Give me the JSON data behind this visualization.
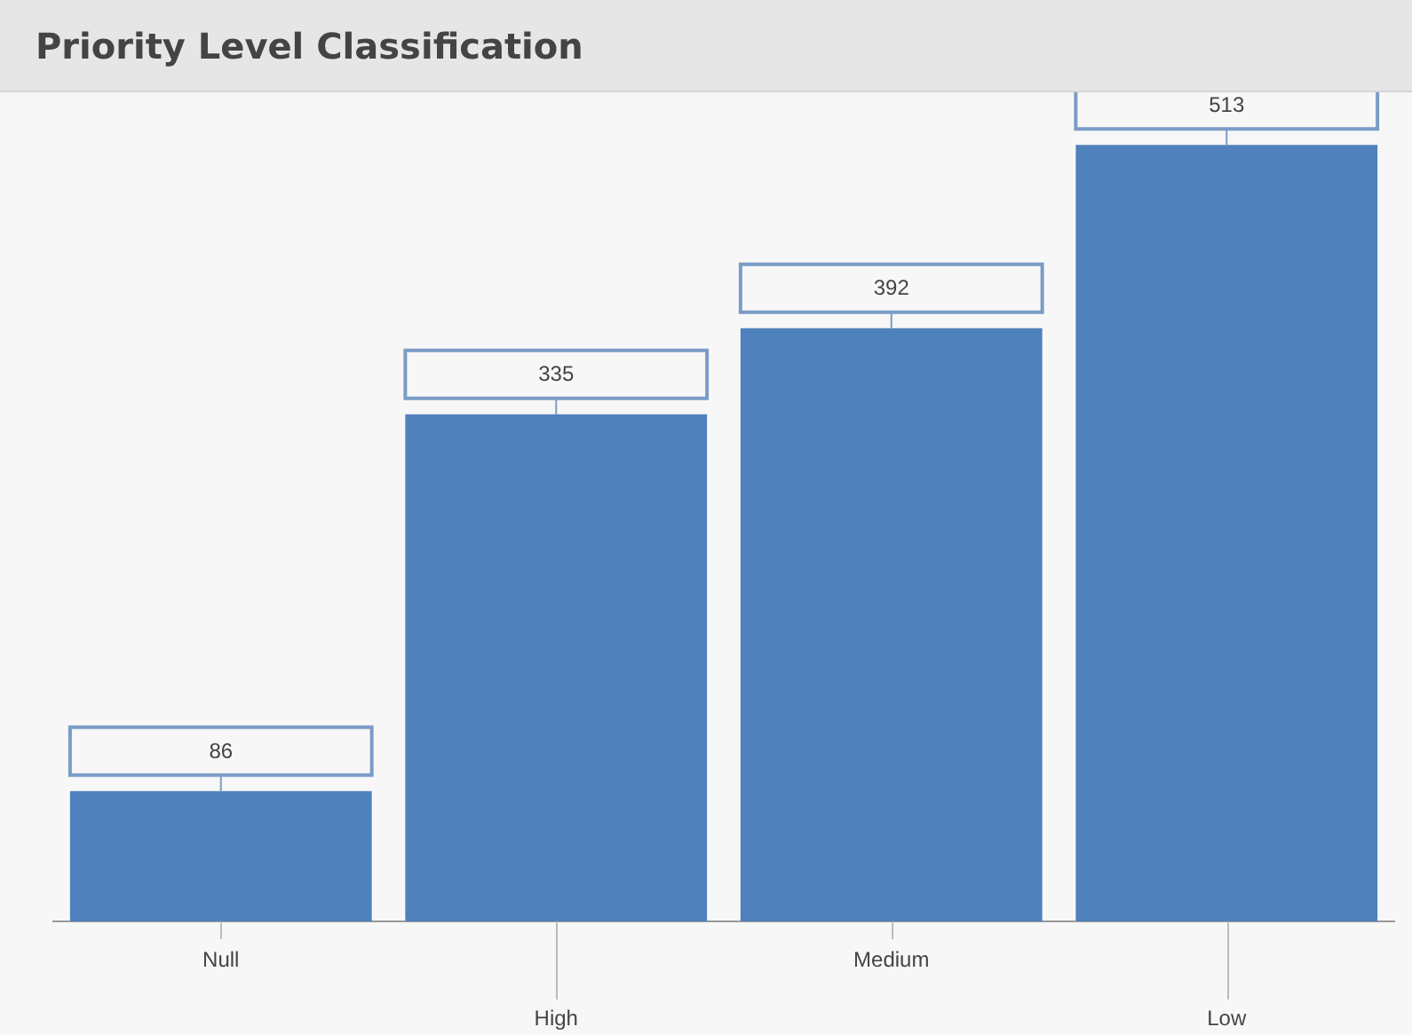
{
  "chart_data": {
    "type": "bar",
    "title": "Priority Level Classification",
    "categories": [
      "Null",
      "High",
      "Medium",
      "Low"
    ],
    "values": [
      86,
      335,
      392,
      513
    ],
    "color": "#4f81bd",
    "data_labels": true,
    "grid": false,
    "legend": false
  }
}
